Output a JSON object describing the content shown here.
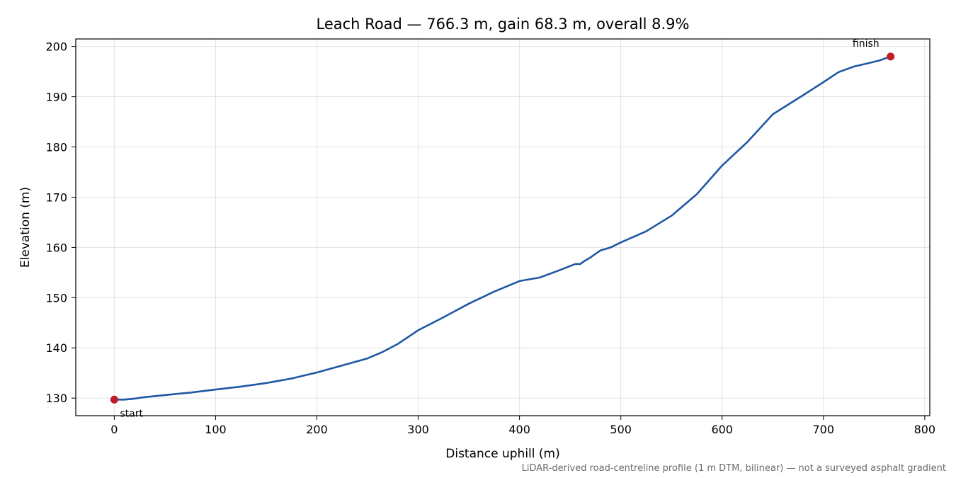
{
  "chart_data": {
    "type": "line",
    "title": "Leach Road — 766.3 m, gain 68.3 m, overall 8.9%",
    "xlabel": "Distance uphill (m)",
    "ylabel": "Elevation (m)",
    "xlim": [
      -38,
      805
    ],
    "ylim": [
      126.5,
      201.5
    ],
    "x_ticks": [
      0,
      100,
      200,
      300,
      400,
      500,
      600,
      700,
      800
    ],
    "y_ticks": [
      130,
      140,
      150,
      160,
      170,
      180,
      190,
      200
    ],
    "grid": true,
    "line_color": "#1f57a4",
    "marker_color": "#c01c28",
    "series": [
      {
        "x": [
          0,
          10,
          20,
          30,
          50,
          75,
          100,
          125,
          150,
          175,
          200,
          225,
          250,
          265,
          280,
          300,
          325,
          350,
          375,
          400,
          420,
          440,
          455,
          460,
          465,
          470,
          480,
          490,
          500,
          525,
          550,
          575,
          600,
          625,
          650,
          665,
          680,
          700,
          715,
          730,
          745,
          755,
          766.3
        ],
        "y": [
          129.7,
          129.7,
          129.9,
          130.2,
          130.6,
          131.1,
          131.7,
          132.3,
          133.0,
          133.9,
          135.1,
          136.5,
          137.9,
          139.2,
          140.8,
          143.5,
          146.1,
          148.8,
          151.2,
          153.3,
          154.0,
          155.5,
          156.7,
          156.7,
          157.4,
          158.0,
          159.4,
          160.0,
          161.0,
          163.2,
          166.3,
          170.6,
          176.3,
          181.0,
          186.5,
          188.4,
          190.3,
          192.9,
          194.9,
          196.0,
          196.7,
          197.2,
          198.0
        ]
      }
    ],
    "annotations": [
      {
        "label": "start",
        "x": 0,
        "y": 129.7
      },
      {
        "label": "finish",
        "x": 766.3,
        "y": 198.0
      }
    ],
    "footnote": "LiDAR-derived road-centreline profile (1 m DTM, bilinear) — not a surveyed asphalt gradient"
  }
}
